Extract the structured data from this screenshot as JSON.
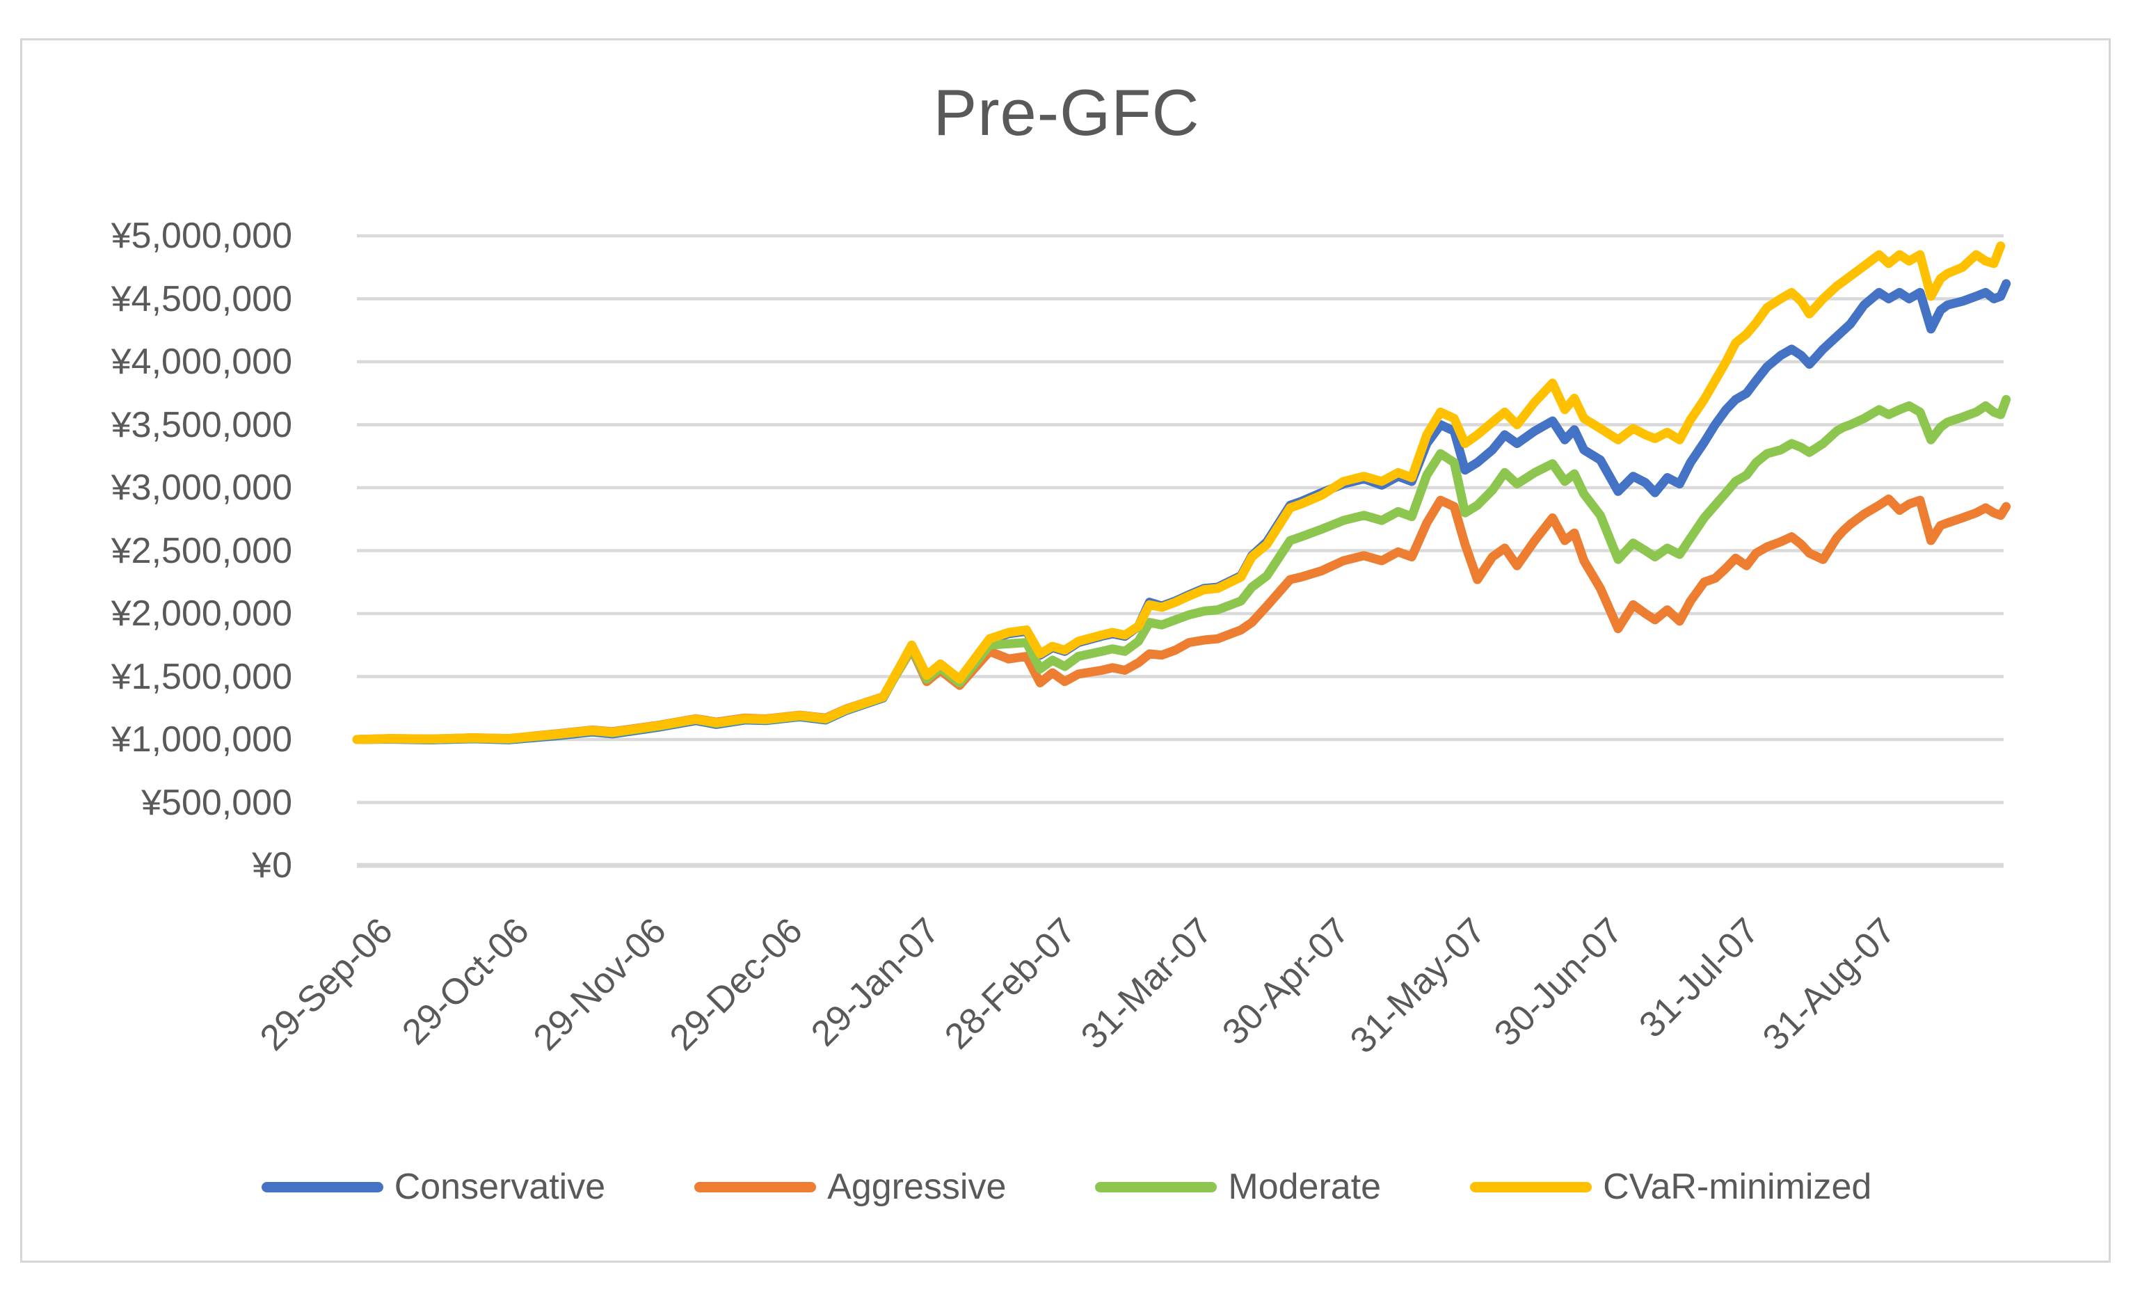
{
  "chart": {
    "title": "Pre-GFC",
    "text_color": "#595959",
    "gridline_color": "#D9D9D9",
    "frame_color": "#D6D6D6",
    "background": "#FFFFFF"
  },
  "chart_data": {
    "type": "line",
    "title": "Pre-GFC",
    "currency": "JPY",
    "grid": true,
    "legend_position": "bottom",
    "y_axis": {
      "min": 0,
      "max": 5000000,
      "step": 500000,
      "tick_labels_top_to_bottom": [
        "¥5,000,000",
        "¥4,500,000",
        "¥4,000,000",
        "¥3,500,000",
        "¥3,000,000",
        "¥2,500,000",
        "¥2,000,000",
        "¥1,500,000",
        "¥1,000,000",
        "¥500,000",
        "¥0"
      ]
    },
    "x_axis": {
      "tick_labels": [
        "29-Sep-06",
        "29-Oct-06",
        "29-Nov-06",
        "29-Dec-06",
        "29-Jan-07",
        "28-Feb-07",
        "31-Mar-07",
        "30-Apr-07",
        "31-May-07",
        "30-Jun-07",
        "31-Jul-07",
        "31-Aug-07"
      ],
      "note": "t is measured in months; t=0 at 29-Sep-06 tick, t=11 at 31-Aug-07 tick; data runs from t=-0.31 to t=11.76 (daily portfolio values)"
    },
    "t": [
      -0.31,
      -0.07,
      0.23,
      0.54,
      0.8,
      1.15,
      1.41,
      1.56,
      1.91,
      2.17,
      2.32,
      2.53,
      2.68,
      2.93,
      3.12,
      3.27,
      3.54,
      3.75,
      3.86,
      3.96,
      4.1,
      4.32,
      4.46,
      4.59,
      4.69,
      4.78,
      4.87,
      4.97,
      5.14,
      5.22,
      5.31,
      5.41,
      5.49,
      5.58,
      5.68,
      5.78,
      5.89,
      5.99,
      6.16,
      6.24,
      6.35,
      6.52,
      6.6,
      6.75,
      6.91,
      7.06,
      7.19,
      7.31,
      7.41,
      7.52,
      7.62,
      7.72,
      7.8,
      7.89,
      8.0,
      8.09,
      8.18,
      8.31,
      8.44,
      8.53,
      8.6,
      8.67,
      8.79,
      8.92,
      9.03,
      9.12,
      9.19,
      9.28,
      9.37,
      9.45,
      9.55,
      9.63,
      9.71,
      9.78,
      9.86,
      9.93,
      10.01,
      10.11,
      10.19,
      10.26,
      10.32,
      10.42,
      10.52,
      10.57,
      10.62,
      10.72,
      10.83,
      10.9,
      10.98,
      11.05,
      11.13,
      11.21,
      11.28,
      11.33,
      11.44,
      11.49,
      11.54,
      11.61,
      11.67,
      11.72,
      11.76
    ],
    "series": [
      {
        "name": "Conservative",
        "color": "#4472C4",
        "values": [
          1000000,
          1003000,
          997000,
          1006000,
          998000,
          1030000,
          1060000,
          1045000,
          1100000,
          1150000,
          1120000,
          1155000,
          1150000,
          1180000,
          1155000,
          1230000,
          1330000,
          1740000,
          1500000,
          1590000,
          1470000,
          1790000,
          1840000,
          1860000,
          1670000,
          1730000,
          1700000,
          1770000,
          1820000,
          1840000,
          1820000,
          1900000,
          2090000,
          2060000,
          2100000,
          2150000,
          2200000,
          2210000,
          2300000,
          2460000,
          2570000,
          2860000,
          2890000,
          2960000,
          3030000,
          3070000,
          3020000,
          3090000,
          3050000,
          3350000,
          3500000,
          3450000,
          3140000,
          3200000,
          3300000,
          3420000,
          3350000,
          3450000,
          3530000,
          3380000,
          3460000,
          3300000,
          3220000,
          2970000,
          3090000,
          3040000,
          2960000,
          3080000,
          3030000,
          3200000,
          3360000,
          3500000,
          3620000,
          3700000,
          3750000,
          3850000,
          3960000,
          4050000,
          4100000,
          4050000,
          3980000,
          4100000,
          4200000,
          4250000,
          4300000,
          4450000,
          4550000,
          4500000,
          4550000,
          4500000,
          4550000,
          4260000,
          4410000,
          4450000,
          4480000,
          4500000,
          4520000,
          4550000,
          4500000,
          4520000,
          4620000
        ]
      },
      {
        "name": "Aggressive",
        "color": "#ED7D31",
        "values": [
          1000000,
          1008000,
          1004000,
          1014000,
          1008000,
          1045000,
          1075000,
          1062000,
          1115000,
          1165000,
          1138000,
          1170000,
          1163000,
          1193000,
          1170000,
          1243000,
          1340000,
          1720000,
          1460000,
          1550000,
          1430000,
          1700000,
          1640000,
          1660000,
          1450000,
          1530000,
          1460000,
          1520000,
          1550000,
          1570000,
          1550000,
          1610000,
          1680000,
          1670000,
          1710000,
          1770000,
          1790000,
          1800000,
          1870000,
          1930000,
          2060000,
          2270000,
          2290000,
          2340000,
          2420000,
          2460000,
          2420000,
          2490000,
          2450000,
          2720000,
          2900000,
          2850000,
          2550000,
          2270000,
          2450000,
          2520000,
          2380000,
          2580000,
          2760000,
          2580000,
          2640000,
          2420000,
          2200000,
          1880000,
          2070000,
          2000000,
          1950000,
          2030000,
          1940000,
          2100000,
          2250000,
          2280000,
          2360000,
          2440000,
          2380000,
          2480000,
          2530000,
          2570000,
          2610000,
          2550000,
          2480000,
          2430000,
          2600000,
          2660000,
          2710000,
          2790000,
          2860000,
          2910000,
          2820000,
          2870000,
          2900000,
          2580000,
          2700000,
          2720000,
          2760000,
          2780000,
          2800000,
          2840000,
          2800000,
          2780000,
          2850000
        ]
      },
      {
        "name": "Moderate",
        "color": "#8CC64E",
        "values": [
          1000000,
          1005000,
          1001000,
          1010000,
          1003000,
          1038000,
          1068000,
          1053000,
          1108000,
          1158000,
          1128000,
          1162000,
          1156000,
          1186000,
          1162000,
          1236000,
          1335000,
          1730000,
          1480000,
          1570000,
          1450000,
          1750000,
          1760000,
          1770000,
          1560000,
          1630000,
          1580000,
          1660000,
          1700000,
          1720000,
          1700000,
          1780000,
          1930000,
          1910000,
          1950000,
          1990000,
          2020000,
          2030000,
          2100000,
          2210000,
          2300000,
          2580000,
          2610000,
          2670000,
          2740000,
          2780000,
          2740000,
          2810000,
          2770000,
          3100000,
          3270000,
          3200000,
          2800000,
          2860000,
          2980000,
          3120000,
          3030000,
          3120000,
          3190000,
          3050000,
          3110000,
          2950000,
          2780000,
          2430000,
          2560000,
          2500000,
          2450000,
          2520000,
          2470000,
          2600000,
          2760000,
          2860000,
          2960000,
          3050000,
          3100000,
          3200000,
          3270000,
          3300000,
          3350000,
          3320000,
          3280000,
          3350000,
          3450000,
          3480000,
          3500000,
          3550000,
          3620000,
          3580000,
          3620000,
          3650000,
          3600000,
          3380000,
          3480000,
          3520000,
          3560000,
          3580000,
          3600000,
          3650000,
          3600000,
          3580000,
          3700000
        ]
      },
      {
        "name": "CVaR-minimized",
        "color": "#FFC000",
        "values": [
          1000000,
          1007000,
          1004000,
          1013000,
          1007000,
          1042000,
          1072000,
          1058000,
          1112000,
          1162000,
          1133000,
          1166000,
          1160000,
          1190000,
          1166000,
          1240000,
          1338000,
          1750000,
          1510000,
          1600000,
          1480000,
          1800000,
          1850000,
          1870000,
          1680000,
          1740000,
          1710000,
          1780000,
          1830000,
          1850000,
          1830000,
          1900000,
          2070000,
          2050000,
          2090000,
          2140000,
          2190000,
          2200000,
          2290000,
          2450000,
          2550000,
          2840000,
          2870000,
          2940000,
          3050000,
          3090000,
          3050000,
          3120000,
          3080000,
          3420000,
          3600000,
          3550000,
          3350000,
          3420000,
          3520000,
          3600000,
          3500000,
          3680000,
          3830000,
          3620000,
          3710000,
          3550000,
          3470000,
          3380000,
          3470000,
          3420000,
          3390000,
          3440000,
          3380000,
          3540000,
          3700000,
          3850000,
          4000000,
          4150000,
          4220000,
          4310000,
          4430000,
          4500000,
          4550000,
          4480000,
          4380000,
          4500000,
          4600000,
          4640000,
          4680000,
          4760000,
          4850000,
          4780000,
          4850000,
          4800000,
          4850000,
          4520000,
          4660000,
          4700000,
          4750000,
          4800000,
          4850000,
          4800000,
          4780000,
          4920000
        ]
      }
    ],
    "legend": [
      {
        "label": "Conservative",
        "color": "#4472C4"
      },
      {
        "label": "Aggressive",
        "color": "#ED7D31"
      },
      {
        "label": "Moderate",
        "color": "#8CC64E"
      },
      {
        "label": "CVaR-minimized",
        "color": "#FFC000"
      }
    ]
  }
}
